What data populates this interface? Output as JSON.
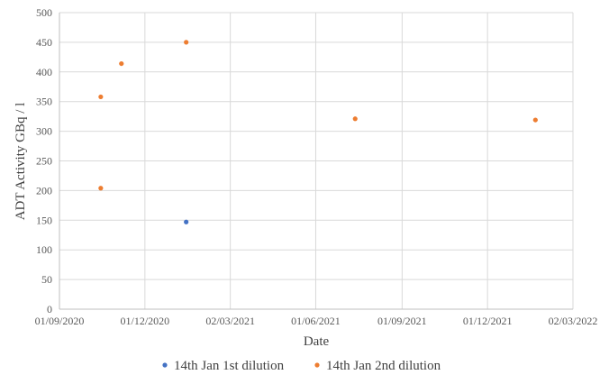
{
  "chart_data": {
    "type": "scatter",
    "title": "",
    "xlabel": "Date",
    "ylabel": "ADT Activity GBq / l",
    "x_axis": {
      "type": "date",
      "range": [
        "2020-09-01",
        "2022-03-02"
      ],
      "tick_values": [
        "2020-09-01",
        "2020-12-01",
        "2021-03-02",
        "2021-06-01",
        "2021-09-01",
        "2021-12-01",
        "2022-03-02"
      ],
      "tick_labels": [
        "01/09/2020",
        "01/12/2020",
        "02/03/2021",
        "01/06/2021",
        "01/09/2021",
        "01/12/2021",
        "02/03/2022"
      ]
    },
    "y_axis": {
      "range": [
        0,
        500
      ],
      "ticks": [
        0,
        50,
        100,
        150,
        200,
        250,
        300,
        350,
        400,
        450,
        500
      ]
    },
    "grid": true,
    "legend_position": "bottom",
    "series": [
      {
        "name": "14th Jan 1st dilution",
        "color": "#4472C4",
        "points": [
          {
            "x": "2021-01-14",
            "y": 147
          }
        ]
      },
      {
        "name": "14th Jan 2nd dilution",
        "color": "#ED7D31",
        "points": [
          {
            "x": "2020-10-15",
            "y": 358
          },
          {
            "x": "2020-10-15",
            "y": 204
          },
          {
            "x": "2020-11-06",
            "y": 414
          },
          {
            "x": "2021-01-14",
            "y": 450
          },
          {
            "x": "2021-07-13",
            "y": 321
          },
          {
            "x": "2022-01-21",
            "y": 319
          }
        ]
      }
    ]
  }
}
